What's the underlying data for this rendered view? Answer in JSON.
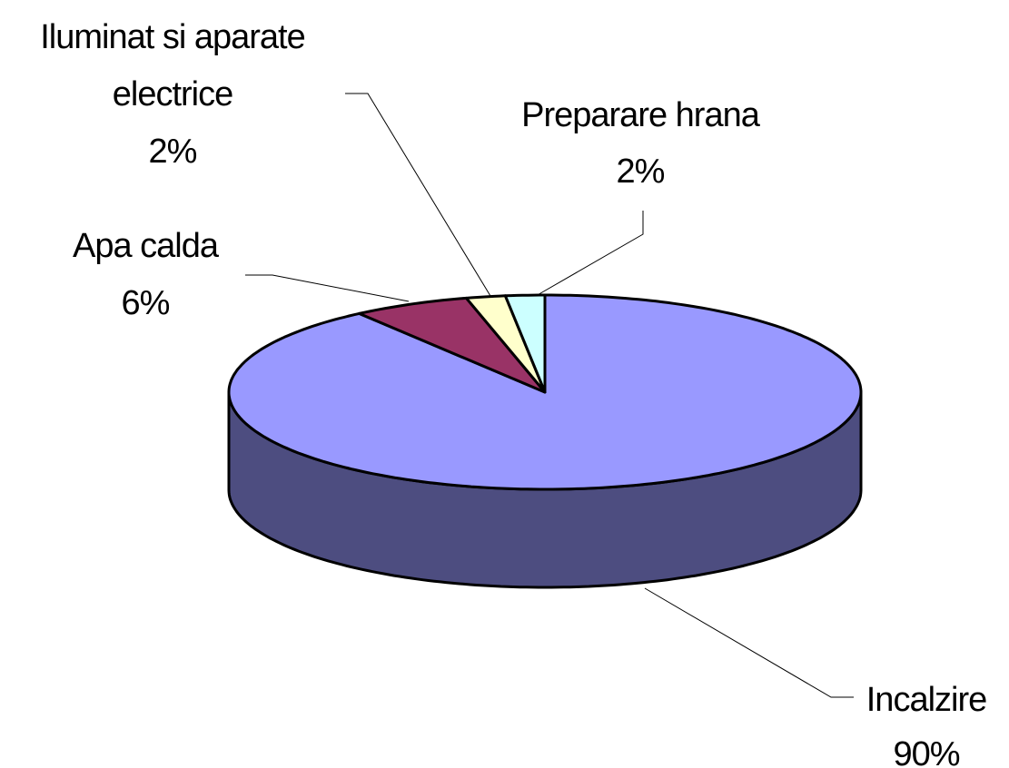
{
  "chart_data": {
    "type": "pie",
    "categories": [
      "Incalzire",
      "Apa calda",
      "Iluminat si aparate electrice",
      "Preparare hrana"
    ],
    "values": [
      90,
      6,
      2,
      2
    ],
    "value_labels": [
      "90%",
      "6%",
      "2%",
      "2%"
    ],
    "colors": [
      "#9999ff",
      "#993366",
      "#ffffcc",
      "#ccffff"
    ]
  }
}
